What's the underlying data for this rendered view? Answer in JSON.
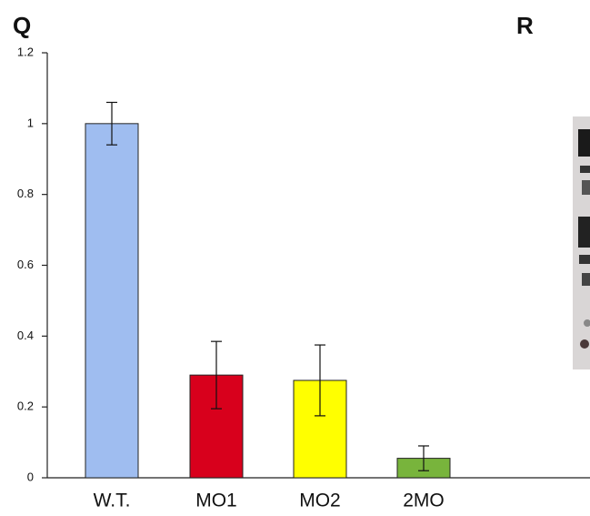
{
  "panel_labels": [
    "Q",
    "R"
  ],
  "chart_data": {
    "type": "bar",
    "categories": [
      "W.T.",
      "MO1",
      "MO2",
      "2MO"
    ],
    "values": [
      1.0,
      0.29,
      0.275,
      0.055
    ],
    "errors": [
      0.06,
      0.095,
      0.1,
      0.035
    ],
    "colors": [
      "#9fbdf0",
      "#d8001c",
      "#ffff00",
      "#78b43c"
    ],
    "ylim": [
      0,
      1.2
    ],
    "yticks": [
      0,
      0.2,
      0.4,
      0.6,
      0.8,
      1,
      1.2
    ]
  }
}
